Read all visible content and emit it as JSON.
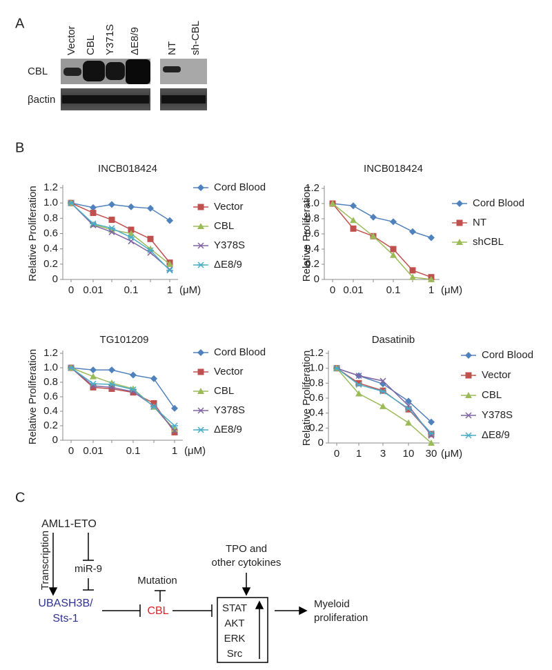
{
  "panels": {
    "a": {
      "label": "A",
      "lanes": [
        "Vector",
        "CBL",
        "Y371S",
        "ΔE8/9",
        "NT",
        "sh-CBL"
      ],
      "rows": [
        "CBL",
        "βactin"
      ]
    },
    "b": {
      "label": "B"
    },
    "c": {
      "label": "C",
      "aml": "AML1-ETO",
      "transcription": "Transcription",
      "mir": "miR-9",
      "ubash1": "UBASH3B/",
      "ubash2": "Sts-1",
      "mutation": "Mutation",
      "cbl": "CBL",
      "tpo1": "TPO and",
      "tpo2": "other cytokines",
      "box": [
        "STAT",
        "AKT",
        "ERK",
        "Src"
      ],
      "out1": "Myeloid",
      "out2": "proliferation"
    }
  },
  "chart_data": [
    {
      "type": "line",
      "title": "INCB018424",
      "y_label": "Relative Proliferation",
      "x_unit": "(μM)",
      "categories": [
        "0",
        "0.01",
        null,
        "0.1",
        null,
        "1"
      ],
      "ylim": [
        0,
        1.2
      ],
      "yticks": [
        0,
        0.2,
        0.4,
        0.6,
        0.8,
        {
          "value": 1,
          "label": "1.0"
        },
        1.2
      ],
      "series": [
        {
          "name": "Cord Blood",
          "color": "#4f81bd",
          "marker": "diamond",
          "values": [
            1.0,
            0.94,
            0.98,
            0.95,
            0.93,
            0.77
          ]
        },
        {
          "name": "Vector",
          "color": "#c0504d",
          "marker": "square",
          "values": [
            1.0,
            0.87,
            0.78,
            0.65,
            0.53,
            0.22
          ]
        },
        {
          "name": "CBL",
          "color": "#9bbb59",
          "marker": "triangle",
          "values": [
            1.0,
            0.72,
            0.65,
            0.6,
            0.4,
            0.2
          ]
        },
        {
          "name": "Y378S",
          "color": "#8064a2",
          "marker": "x",
          "values": [
            1.0,
            0.71,
            0.62,
            0.5,
            0.35,
            0.13
          ]
        },
        {
          "name": "ΔE8/9",
          "color": "#4bacc6",
          "marker": "asterisk",
          "values": [
            1.0,
            0.73,
            0.67,
            0.55,
            0.38,
            0.12
          ]
        }
      ]
    },
    {
      "type": "line",
      "title": "INCB018424",
      "y_label": "Relative Proliferation",
      "x_unit": "(μM)",
      "categories": [
        "0",
        "0.01",
        null,
        "0.1",
        null,
        "1"
      ],
      "ylim": [
        0,
        1.2
      ],
      "yticks": [
        0,
        0.2,
        0.4,
        0.6,
        0.8,
        {
          "value": 1,
          "label": "1.0"
        },
        1.2
      ],
      "series": [
        {
          "name": "Cord Blood",
          "color": "#4f81bd",
          "marker": "diamond",
          "values": [
            1.0,
            0.97,
            0.82,
            0.76,
            0.63,
            0.55
          ]
        },
        {
          "name": "NT",
          "color": "#c0504d",
          "marker": "square",
          "values": [
            1.0,
            0.67,
            0.57,
            0.4,
            0.12,
            0.03
          ]
        },
        {
          "name": "shCBL",
          "color": "#9bbb59",
          "marker": "triangle",
          "values": [
            1.0,
            0.78,
            0.57,
            0.32,
            0.03,
            0.0
          ]
        }
      ]
    },
    {
      "type": "line",
      "title": "TG101209",
      "y_label": "Relative Proliferation",
      "x_unit": "(μM)",
      "categories": [
        "0",
        "0.01",
        null,
        "0.1",
        null,
        "1"
      ],
      "ylim": [
        0,
        1.2
      ],
      "yticks": [
        0,
        0.2,
        0.4,
        0.6,
        0.8,
        {
          "value": 1,
          "label": "1.0"
        },
        1.2
      ],
      "series": [
        {
          "name": "Cord Blood",
          "color": "#4f81bd",
          "marker": "diamond",
          "values": [
            1.0,
            0.97,
            0.97,
            0.9,
            0.85,
            0.44
          ]
        },
        {
          "name": "Vector",
          "color": "#c0504d",
          "marker": "square",
          "values": [
            1.0,
            0.73,
            0.71,
            0.66,
            0.51,
            0.11
          ]
        },
        {
          "name": "CBL",
          "color": "#9bbb59",
          "marker": "triangle",
          "values": [
            1.0,
            0.88,
            0.79,
            0.71,
            0.46,
            0.15
          ]
        },
        {
          "name": "Y378S",
          "color": "#8064a2",
          "marker": "x",
          "values": [
            1.0,
            0.75,
            0.73,
            0.67,
            0.47,
            0.13
          ]
        },
        {
          "name": "ΔE8/9",
          "color": "#4bacc6",
          "marker": "asterisk",
          "values": [
            1.0,
            0.78,
            0.77,
            0.7,
            0.46,
            0.2
          ]
        }
      ]
    },
    {
      "type": "line",
      "title": "Dasatinib",
      "y_label": "Relative Proliferation",
      "x_unit": "(μM)",
      "categories": [
        "0",
        "1",
        "3",
        "10",
        "30"
      ],
      "ylim": [
        0,
        1.2
      ],
      "yticks": [
        0,
        0.2,
        0.4,
        0.6,
        0.8,
        {
          "value": 1,
          "label": "1.0"
        },
        1.2
      ],
      "series": [
        {
          "name": "Cord Blood",
          "color": "#4f81bd",
          "marker": "diamond",
          "values": [
            1.0,
            0.9,
            0.79,
            0.56,
            0.28
          ]
        },
        {
          "name": "Vector",
          "color": "#c0504d",
          "marker": "square",
          "values": [
            1.0,
            0.8,
            0.7,
            0.45,
            0.12
          ]
        },
        {
          "name": "CBL",
          "color": "#9bbb59",
          "marker": "triangle",
          "values": [
            1.0,
            0.66,
            0.49,
            0.27,
            0.0
          ]
        },
        {
          "name": "Y378S",
          "color": "#8064a2",
          "marker": "x",
          "values": [
            1.0,
            0.9,
            0.83,
            0.5,
            0.1
          ]
        },
        {
          "name": "ΔE8/9",
          "color": "#4bacc6",
          "marker": "asterisk",
          "values": [
            1.0,
            0.78,
            0.69,
            0.46,
            0.13
          ]
        }
      ]
    }
  ]
}
